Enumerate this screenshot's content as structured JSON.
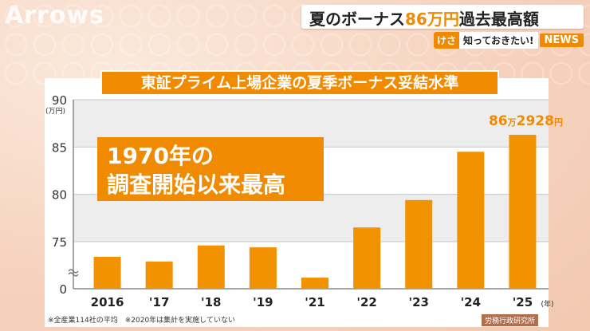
{
  "header": {
    "logo_text": "Arrows",
    "title_part1": "夏のボーナス",
    "title_highlight": "86万円",
    "title_part2": "過去最高額",
    "tag_kesa": "けさ",
    "tag_shitte": "知っておきたい!",
    "tag_news": "NEWS"
  },
  "callout": {
    "line1": "1970年の",
    "line2": "調査開始以来最高"
  },
  "footnote": "※全産業114社の平均　※2020年は集計を実施していない",
  "source": "労務行政研究所",
  "colors": {
    "bar": "#f39200",
    "accent": "#f08a00",
    "band": "#ededed"
  },
  "chart_data": {
    "type": "bar",
    "title": "東証プライム上場企業の夏季ボーナス妥結水準",
    "categories": [
      "2016",
      "'17",
      "'18",
      "'19",
      "'21",
      "'22",
      "'23",
      "'24",
      "'25"
    ],
    "values": [
      73.4,
      72.9,
      74.6,
      74.4,
      71.2,
      76.5,
      79.4,
      84.5,
      86.29
    ],
    "y_ticks": [
      "90",
      "85",
      "80",
      "75",
      "0"
    ],
    "y_unit": "(万円)",
    "x_unit": "(年)",
    "ylim": [
      70,
      90
    ],
    "axis_break": true,
    "last_value_label": {
      "num1": "86",
      "unit1": "万",
      "num2": "2928",
      "unit2": "円"
    }
  }
}
